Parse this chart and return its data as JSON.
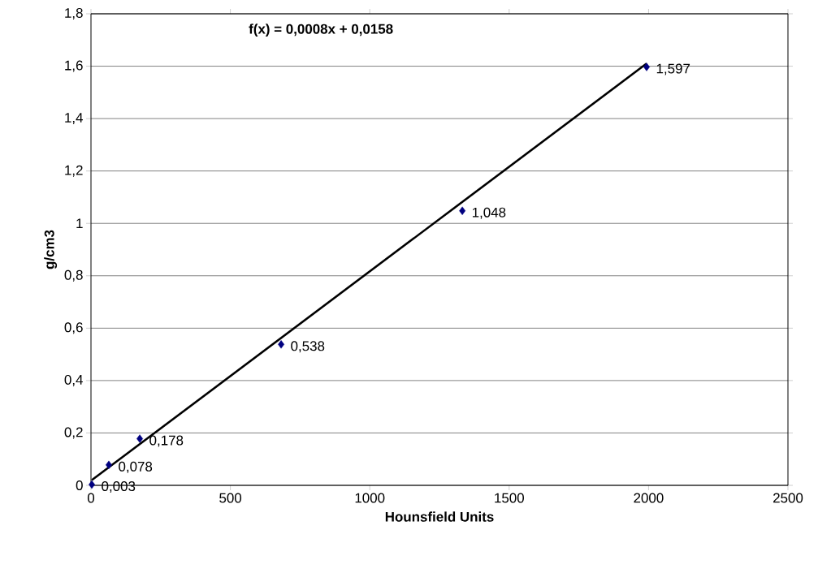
{
  "chart_data": {
    "type": "scatter",
    "xlabel": "Hounsfield Units",
    "ylabel": "g/cm3",
    "annotations": [
      "f(x) = 0,0008x + 0,0158"
    ],
    "xlim": [
      0,
      2500
    ],
    "xticks": [
      0,
      500,
      1000,
      1500,
      2000,
      2500
    ],
    "ylim": [
      0,
      1.8
    ],
    "yticks": [
      0,
      {
        "value": 0.2,
        "label": "0,2"
      },
      {
        "value": 0.4,
        "label": "0,4"
      },
      {
        "value": 0.6,
        "label": "0,6"
      },
      {
        "value": 0.8,
        "label": "0,8"
      },
      1,
      {
        "value": 1.2,
        "label": "1,2"
      },
      {
        "value": 1.4,
        "label": "1,4"
      },
      {
        "value": 1.6,
        "label": "1,6"
      },
      {
        "value": 1.8,
        "label": "1,8"
      }
    ],
    "grid": "y",
    "series": [
      {
        "color": "#000080",
        "marker": "diamond",
        "x": [
          3,
          64,
          175,
          682,
          1332,
          1993
        ],
        "values": [
          0.003,
          0.078,
          0.178,
          0.538,
          1.048,
          1.597
        ],
        "value_labels": [
          "0,003",
          "0,078",
          "0,178",
          "0,538",
          "1,048",
          "1,597"
        ]
      },
      {
        "type": "line",
        "color": "#000000",
        "marker": "none",
        "line_style": "solid",
        "x": [
          3,
          1993
        ],
        "values": [
          0.02,
          1.61
        ]
      }
    ]
  }
}
